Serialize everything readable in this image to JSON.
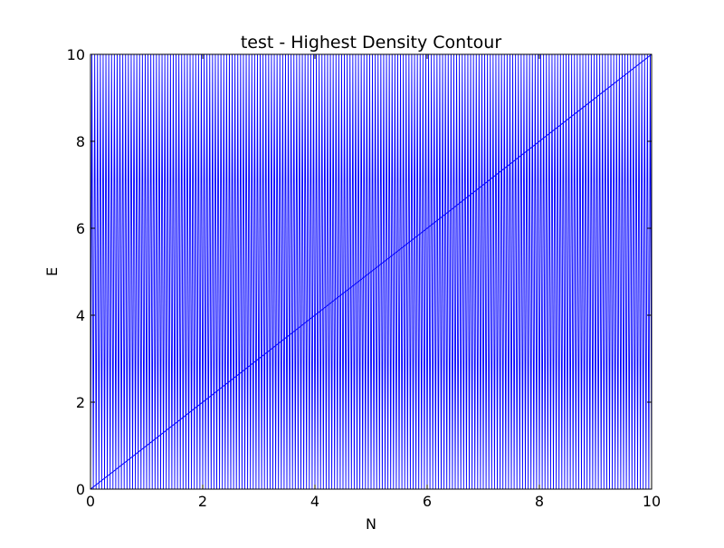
{
  "chart_data": {
    "type": "line",
    "title": "test - Highest Density Contour",
    "xlabel": "N",
    "ylabel": "E",
    "xlim": [
      0,
      10
    ],
    "ylim": [
      0,
      10
    ],
    "x_ticks": [
      "0",
      "2",
      "4",
      "6",
      "8",
      "10"
    ],
    "y_ticks": [
      "0",
      "2",
      "4",
      "6",
      "8",
      "10"
    ],
    "grid": false,
    "legend": "none",
    "series": [
      {
        "style": "zigzag",
        "color": "#0000ff",
        "x": [
          0,
          10
        ],
        "y_range": [
          0,
          10
        ],
        "peaks": 200
      },
      {
        "style": "diagonal",
        "color": "#0000ff",
        "x": [
          0,
          10
        ],
        "y": [
          0,
          10
        ]
      }
    ]
  }
}
